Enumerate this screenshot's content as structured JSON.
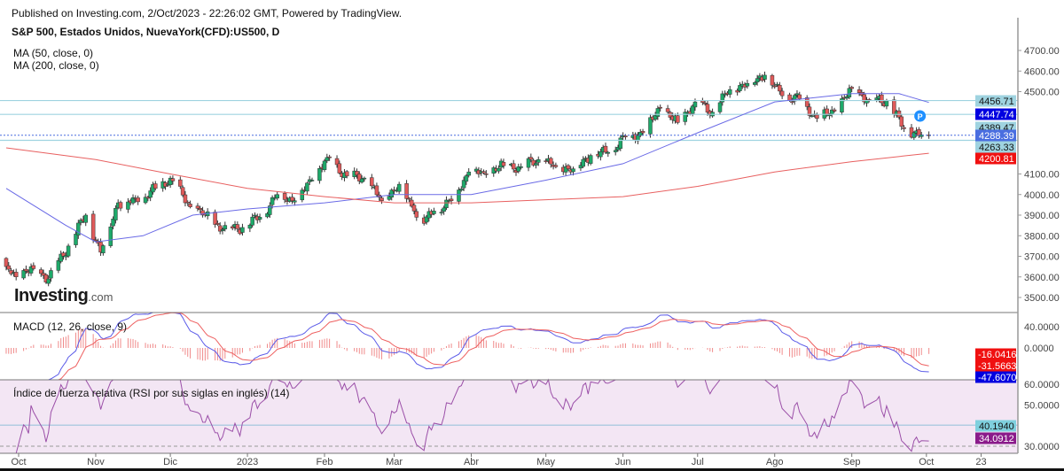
{
  "header": {
    "published": "Published on Investing.com, 2/Oct/2023 - 22:26:02 GMT, Powered by TradingView.",
    "symbol": "S&P 500, Estados Unidos, NuevaYork(CFD):US500, D",
    "ma50_label": "MA (50, close, 0)",
    "ma200_label": "MA (200, close, 0)",
    "macd_label": "MACD (12, 26, close, 9)",
    "rsi_label": "Índice de fuerza relativa (RSI por sus siglas en inglés) (14)",
    "logo": "Investing",
    "logo_suffix": ".com"
  },
  "colors": {
    "up": "#1daa6a",
    "down": "#e05a5a",
    "ma50": "#6a6ae6",
    "ma200": "#e86060",
    "hline": "#9fd3e0",
    "rsi": "#9b4fa8",
    "rsi_bg": "#f3e6f4",
    "macd_line": "#5a5ae8",
    "signal_line": "#ee6060",
    "hist": "#f08a8a"
  },
  "chart_data": [
    {
      "type": "candlestick",
      "title": "S&P 500, Estados Unidos, NuevaYork(CFD):US500, D",
      "ylim": [
        3440,
        4780
      ],
      "y_ticks": [
        "4700.00",
        "4600.00",
        "4500.00",
        "4100.00",
        "4000.00",
        "3900.00",
        "3800.00",
        "3700.00",
        "3600.00",
        "3500.00"
      ],
      "x_ticks": [
        "Oct",
        "Nov",
        "Dic",
        "2023",
        "Feb",
        "Mar",
        "Abr",
        "May",
        "Jun",
        "Jul",
        "Ago",
        "Sep",
        "Oct",
        "23"
      ],
      "x_tick_dates": [
        "2022-10-01",
        "2022-11-01",
        "2022-12-01",
        "2023-01-01",
        "2023-02-01",
        "2023-03-01",
        "2023-04-01",
        "2023-05-01",
        "2023-06-01",
        "2023-07-01",
        "2023-08-01",
        "2023-09-01",
        "2023-10-01",
        "2023-10-23"
      ],
      "weekly_closes": [
        [
          "2022-09-26",
          3650
        ],
        [
          "2022-09-30",
          3600
        ],
        [
          "2022-10-07",
          3640
        ],
        [
          "2022-10-13",
          3590
        ],
        [
          "2022-10-21",
          3750
        ],
        [
          "2022-10-28",
          3900
        ],
        [
          "2022-11-03",
          3720
        ],
        [
          "2022-11-10",
          3960
        ],
        [
          "2022-11-18",
          3965
        ],
        [
          "2022-11-25",
          4030
        ],
        [
          "2022-12-01",
          4080
        ],
        [
          "2022-12-09",
          3940
        ],
        [
          "2022-12-15",
          3900
        ],
        [
          "2022-12-22",
          3830
        ],
        [
          "2022-12-30",
          3840
        ],
        [
          "2023-01-06",
          3890
        ],
        [
          "2023-01-13",
          4000
        ],
        [
          "2023-01-20",
          3970
        ],
        [
          "2023-01-27",
          4070
        ],
        [
          "2023-02-02",
          4180
        ],
        [
          "2023-02-10",
          4090
        ],
        [
          "2023-02-17",
          4080
        ],
        [
          "2023-02-24",
          3970
        ],
        [
          "2023-03-03",
          4050
        ],
        [
          "2023-03-09",
          3920
        ],
        [
          "2023-03-13",
          3860
        ],
        [
          "2023-03-17",
          3920
        ],
        [
          "2023-03-24",
          3970
        ],
        [
          "2023-03-31",
          4110
        ],
        [
          "2023-04-06",
          4105
        ],
        [
          "2023-04-14",
          4140
        ],
        [
          "2023-04-21",
          4135
        ],
        [
          "2023-04-28",
          4170
        ],
        [
          "2023-05-05",
          4135
        ],
        [
          "2023-05-12",
          4125
        ],
        [
          "2023-05-19",
          4190
        ],
        [
          "2023-05-26",
          4205
        ],
        [
          "2023-06-02",
          4280
        ],
        [
          "2023-06-09",
          4300
        ],
        [
          "2023-06-16",
          4420
        ],
        [
          "2023-06-23",
          4350
        ],
        [
          "2023-06-30",
          4450
        ],
        [
          "2023-07-07",
          4400
        ],
        [
          "2023-07-14",
          4510
        ],
        [
          "2023-07-21",
          4540
        ],
        [
          "2023-07-28",
          4580
        ],
        [
          "2023-08-04",
          4480
        ],
        [
          "2023-08-11",
          4465
        ],
        [
          "2023-08-18",
          4370
        ],
        [
          "2023-08-25",
          4405
        ],
        [
          "2023-09-01",
          4515
        ],
        [
          "2023-09-08",
          4460
        ],
        [
          "2023-09-15",
          4455
        ],
        [
          "2023-09-22",
          4320
        ],
        [
          "2023-09-29",
          4290
        ],
        [
          "2023-10-02",
          4288.39
        ]
      ],
      "ma50": [
        [
          "2022-09-26",
          4030
        ],
        [
          "2022-10-20",
          3850
        ],
        [
          "2022-11-01",
          3770
        ],
        [
          "2022-11-20",
          3800
        ],
        [
          "2022-12-10",
          3900
        ],
        [
          "2023-01-01",
          3930
        ],
        [
          "2023-02-01",
          3960
        ],
        [
          "2023-03-01",
          4000
        ],
        [
          "2023-04-01",
          4000
        ],
        [
          "2023-05-01",
          4070
        ],
        [
          "2023-06-01",
          4150
        ],
        [
          "2023-07-01",
          4300
        ],
        [
          "2023-08-01",
          4450
        ],
        [
          "2023-09-01",
          4490
        ],
        [
          "2023-09-20",
          4490
        ],
        [
          "2023-10-02",
          4447.74
        ]
      ],
      "ma200": [
        [
          "2022-09-26",
          4227
        ],
        [
          "2022-11-01",
          4170
        ],
        [
          "2022-12-01",
          4100
        ],
        [
          "2023-01-01",
          4030
        ],
        [
          "2023-02-01",
          3990
        ],
        [
          "2023-03-01",
          3960
        ],
        [
          "2023-04-01",
          3960
        ],
        [
          "2023-05-01",
          3975
        ],
        [
          "2023-06-01",
          3990
        ],
        [
          "2023-07-01",
          4040
        ],
        [
          "2023-08-01",
          4110
        ],
        [
          "2023-09-01",
          4160
        ],
        [
          "2023-10-02",
          4200.81
        ]
      ],
      "horizontal_lines": [
        4456.71,
        4389.47,
        4263.33
      ],
      "price_tags": [
        {
          "text": "4456.71",
          "value": 4456.71,
          "bg": "#9fd3e0",
          "fg": "#111"
        },
        {
          "text": "4447.74",
          "value": 4447.74,
          "bg": "#0000e0",
          "fg": "#fff"
        },
        {
          "text": "4389.47",
          "value": 4389.47,
          "bg": "#9fd3e0",
          "fg": "#111"
        },
        {
          "text": "4288.39",
          "value": 4288.39,
          "bg": "#4a6ee0",
          "fg": "#fff"
        },
        {
          "text": "4263.33",
          "value": 4263.33,
          "bg": "#9fd3e0",
          "fg": "#111"
        },
        {
          "text": "4200.81",
          "value": 4200.81,
          "bg": "#f01010",
          "fg": "#fff"
        }
      ],
      "last_price": 4288.39,
      "marker": "P"
    },
    {
      "type": "line",
      "title": "MACD (12, 26, close, 9)",
      "ylim": [
        -60,
        66
      ],
      "y_ticks": [
        "40.0000",
        "0.0000"
      ],
      "last_values": [
        {
          "text": "-16.0416",
          "bg": "#f01010"
        },
        {
          "text": "-31.5663",
          "bg": "#f01010"
        },
        {
          "text": "-47.6070",
          "bg": "#0000e0"
        }
      ]
    },
    {
      "type": "line",
      "title": "Índice de fuerza relativa (RSI por sus siglas en inglés) (14)",
      "ylim": [
        26.5,
        62
      ],
      "y_ticks": [
        "60.0000",
        "50.0000",
        "30.0000"
      ],
      "level_line": 40.194,
      "dashed_level": 30,
      "last_values": [
        {
          "text": "40.1940",
          "bg": "#7fd0de",
          "fg": "#111"
        },
        {
          "text": "34.0912",
          "bg": "#8a1a8a",
          "fg": "#fff"
        }
      ]
    }
  ]
}
